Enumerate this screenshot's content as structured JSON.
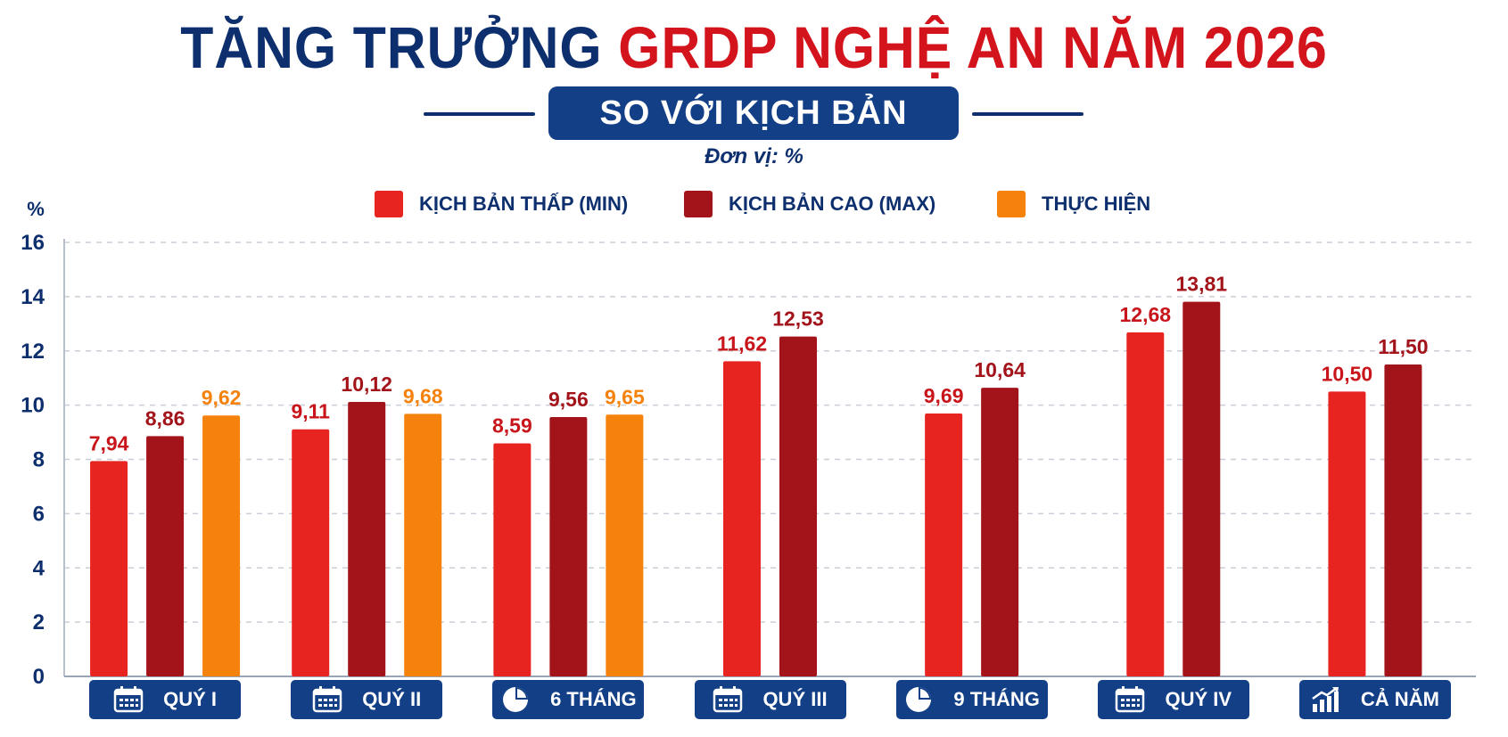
{
  "title": {
    "part1": "TĂNG TRƯỞNG",
    "part2": "GRDP NGHỆ AN NĂM 2026"
  },
  "subtitle": "SO VỚI KỊCH BẢN",
  "unit_label": "Đơn vị: %",
  "colors": {
    "navy": "#0e2f6e",
    "red": "#e82421",
    "darkred": "#a3131a",
    "orange": "#f5820d"
  },
  "chart_data": {
    "type": "bar",
    "ylabel": "%",
    "ylim": [
      0,
      16
    ],
    "yticks": [
      0,
      2,
      4,
      6,
      8,
      10,
      12,
      14,
      16
    ],
    "ytick_labels": [
      "0",
      "2",
      "4",
      "6",
      "8",
      "10",
      "12",
      "14",
      "16"
    ],
    "grid": true,
    "legend_position": "top",
    "categories": [
      "QUÝ I",
      "QUÝ II",
      "6 THÁNG",
      "QUÝ III",
      "9 THÁNG",
      "QUÝ IV",
      "CẢ NĂM"
    ],
    "category_icons": [
      "calendar-icon",
      "calendar-icon",
      "pie-icon",
      "calendar-icon",
      "pie-icon",
      "calendar-icon",
      "growth-icon"
    ],
    "series": [
      {
        "name": "KỊCH BẢN THẤP (MIN)",
        "color": "#e82421",
        "label_color": "#c8151b",
        "values": [
          7.94,
          9.11,
          8.59,
          11.62,
          9.69,
          12.68,
          10.5
        ],
        "labels": [
          "7,94",
          "9,11",
          "8,59",
          "11,62",
          "9,69",
          "12,68",
          "10,50"
        ]
      },
      {
        "name": "KỊCH BẢN CAO (MAX)",
        "color": "#a3131a",
        "label_color": "#a3131a",
        "values": [
          8.86,
          10.12,
          9.56,
          12.53,
          10.64,
          13.81,
          11.5
        ],
        "labels": [
          "8,86",
          "10,12",
          "9,56",
          "12,53",
          "10,64",
          "13,81",
          "11,50"
        ]
      },
      {
        "name": "THỰC HIỆN",
        "color": "#f5820d",
        "label_color": "#f5820d",
        "values": [
          9.62,
          9.68,
          9.65,
          null,
          null,
          null,
          null
        ],
        "labels": [
          "9,62",
          "9,68",
          "9,65",
          "",
          "",
          "",
          ""
        ]
      }
    ]
  }
}
